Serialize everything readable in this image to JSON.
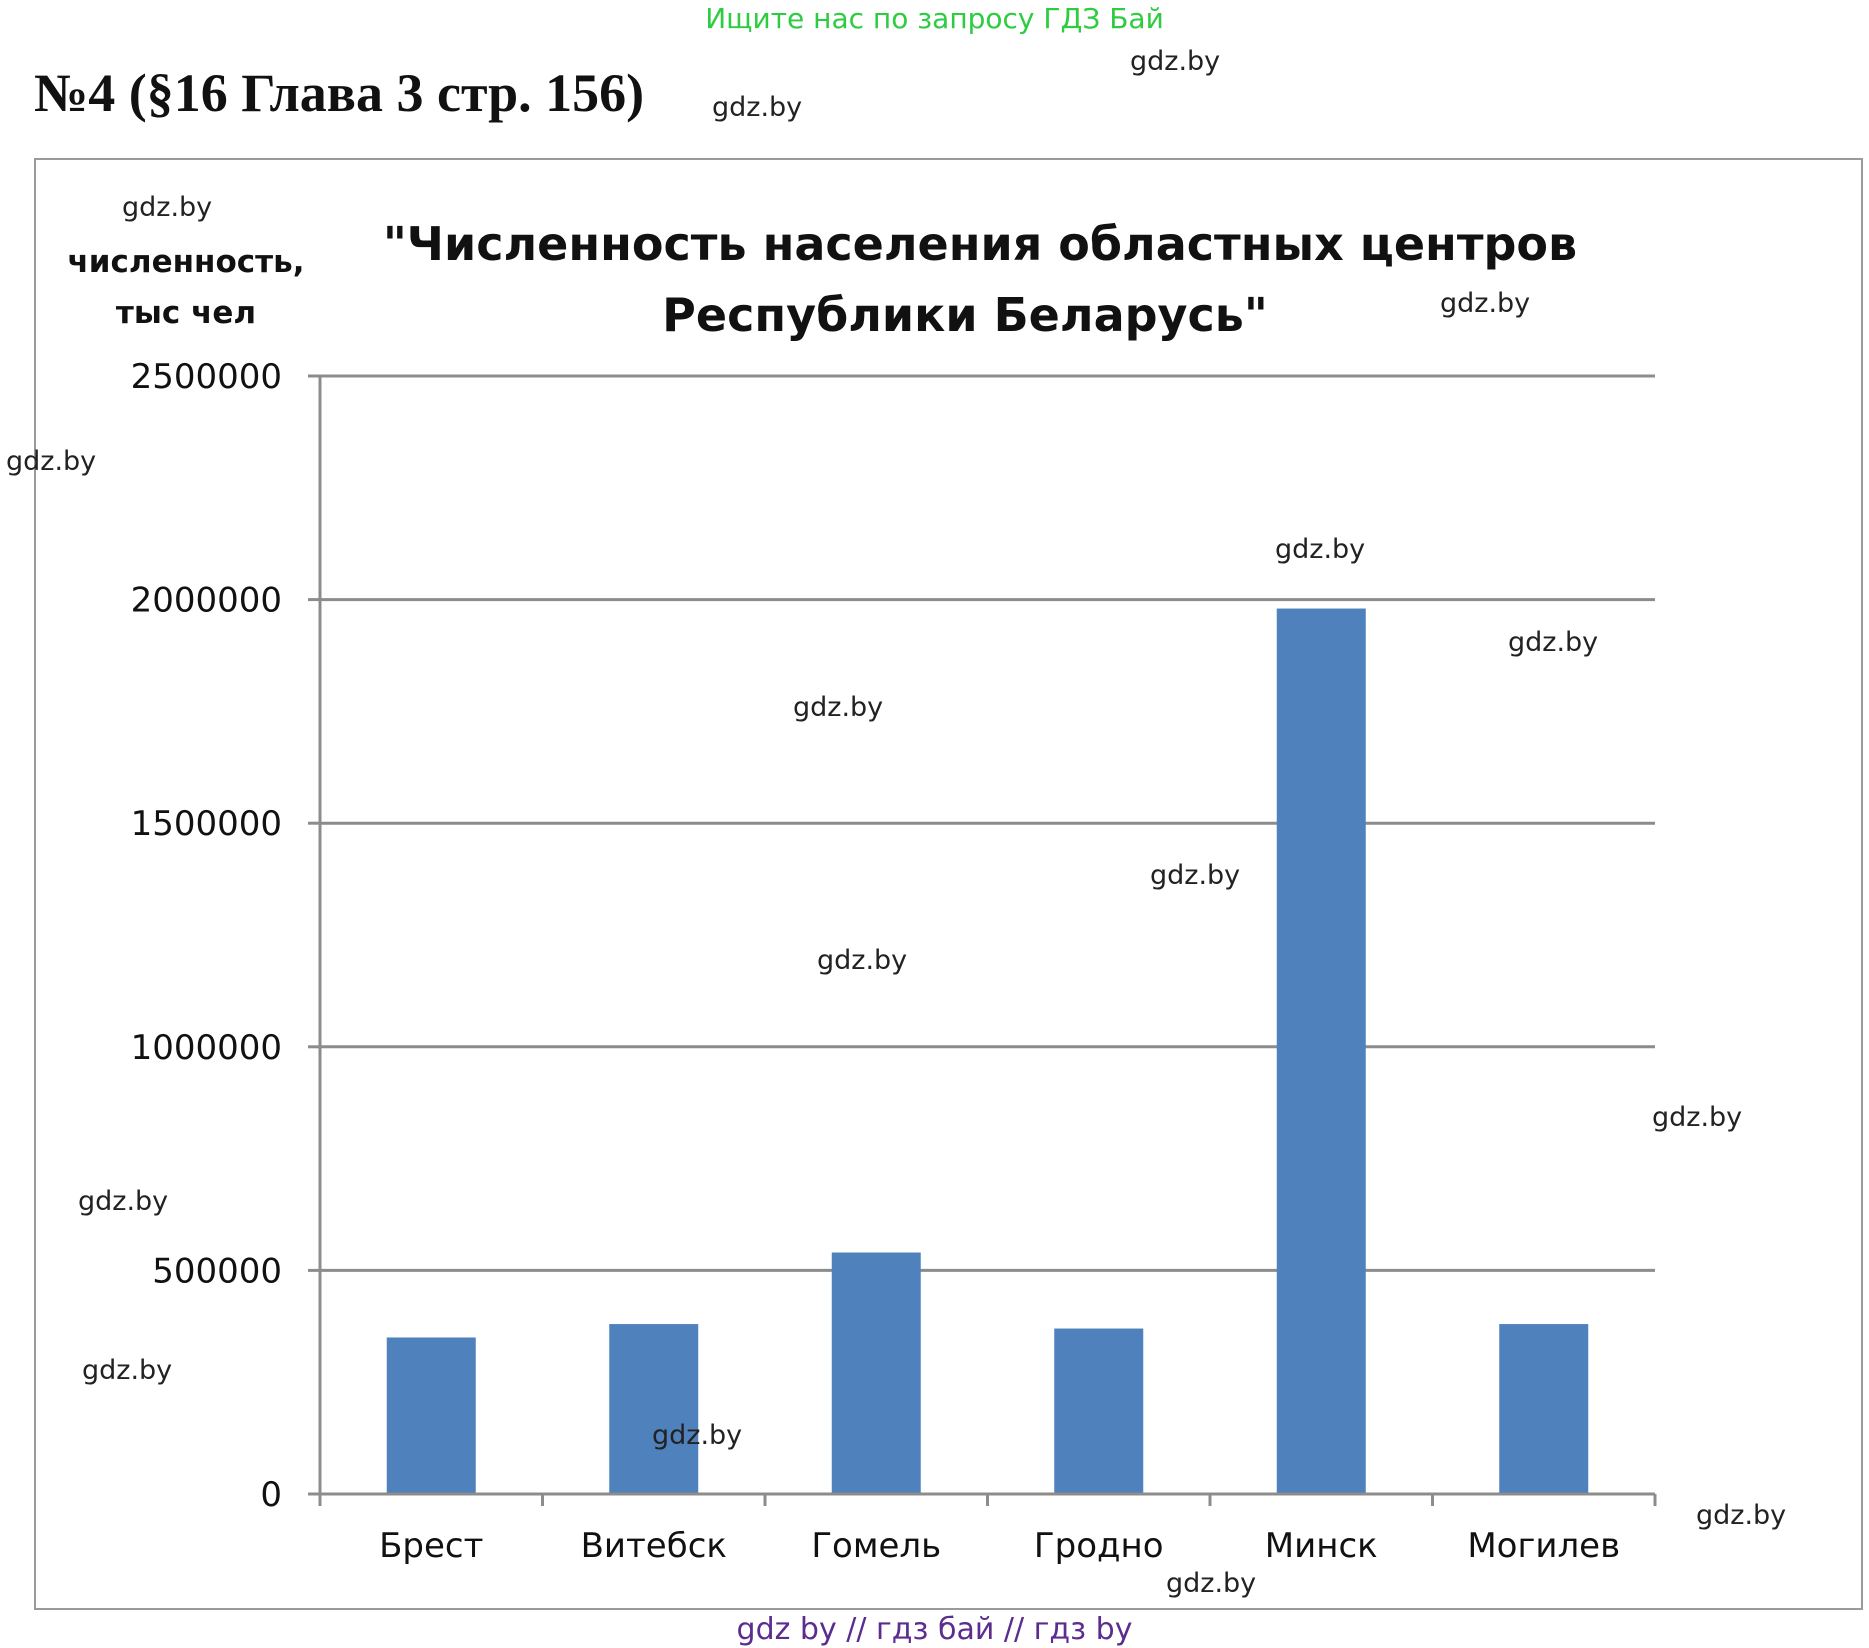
{
  "header": {
    "banner": "Ищите нас по запросу ГДЗ Бай",
    "heading": "№4 (§16 Глава 3 стр. 156)"
  },
  "footer": {
    "banner": "gdz by  //  гдз бай  //  гдз by"
  },
  "watermark_text": "gdz.by",
  "colors": {
    "bar": "#4f81bd",
    "grid": "#8c8c8c",
    "banner_top": "#2ecc40",
    "banner_bottom": "#5b2d8e"
  },
  "chart_data": {
    "type": "bar",
    "title_line1": "\"Численность населения областных центров",
    "title_line2": "Республики Беларусь\"",
    "ylabel_line1": "численность,",
    "ylabel_line2": "тыс чел",
    "xlabel": "",
    "categories": [
      "Брест",
      "Витебск",
      "Гомель",
      "Гродно",
      "Минск",
      "Могилев"
    ],
    "values": [
      350000,
      380000,
      540000,
      370000,
      1980000,
      380000
    ],
    "ylim": [
      0,
      2500000
    ],
    "yticks": [
      0,
      500000,
      1000000,
      1500000,
      2000000,
      2500000
    ],
    "ytick_labels": [
      "0",
      "500000",
      "1000000",
      "1500000",
      "2000000",
      "2500000"
    ],
    "grid": true,
    "legend": "none"
  }
}
